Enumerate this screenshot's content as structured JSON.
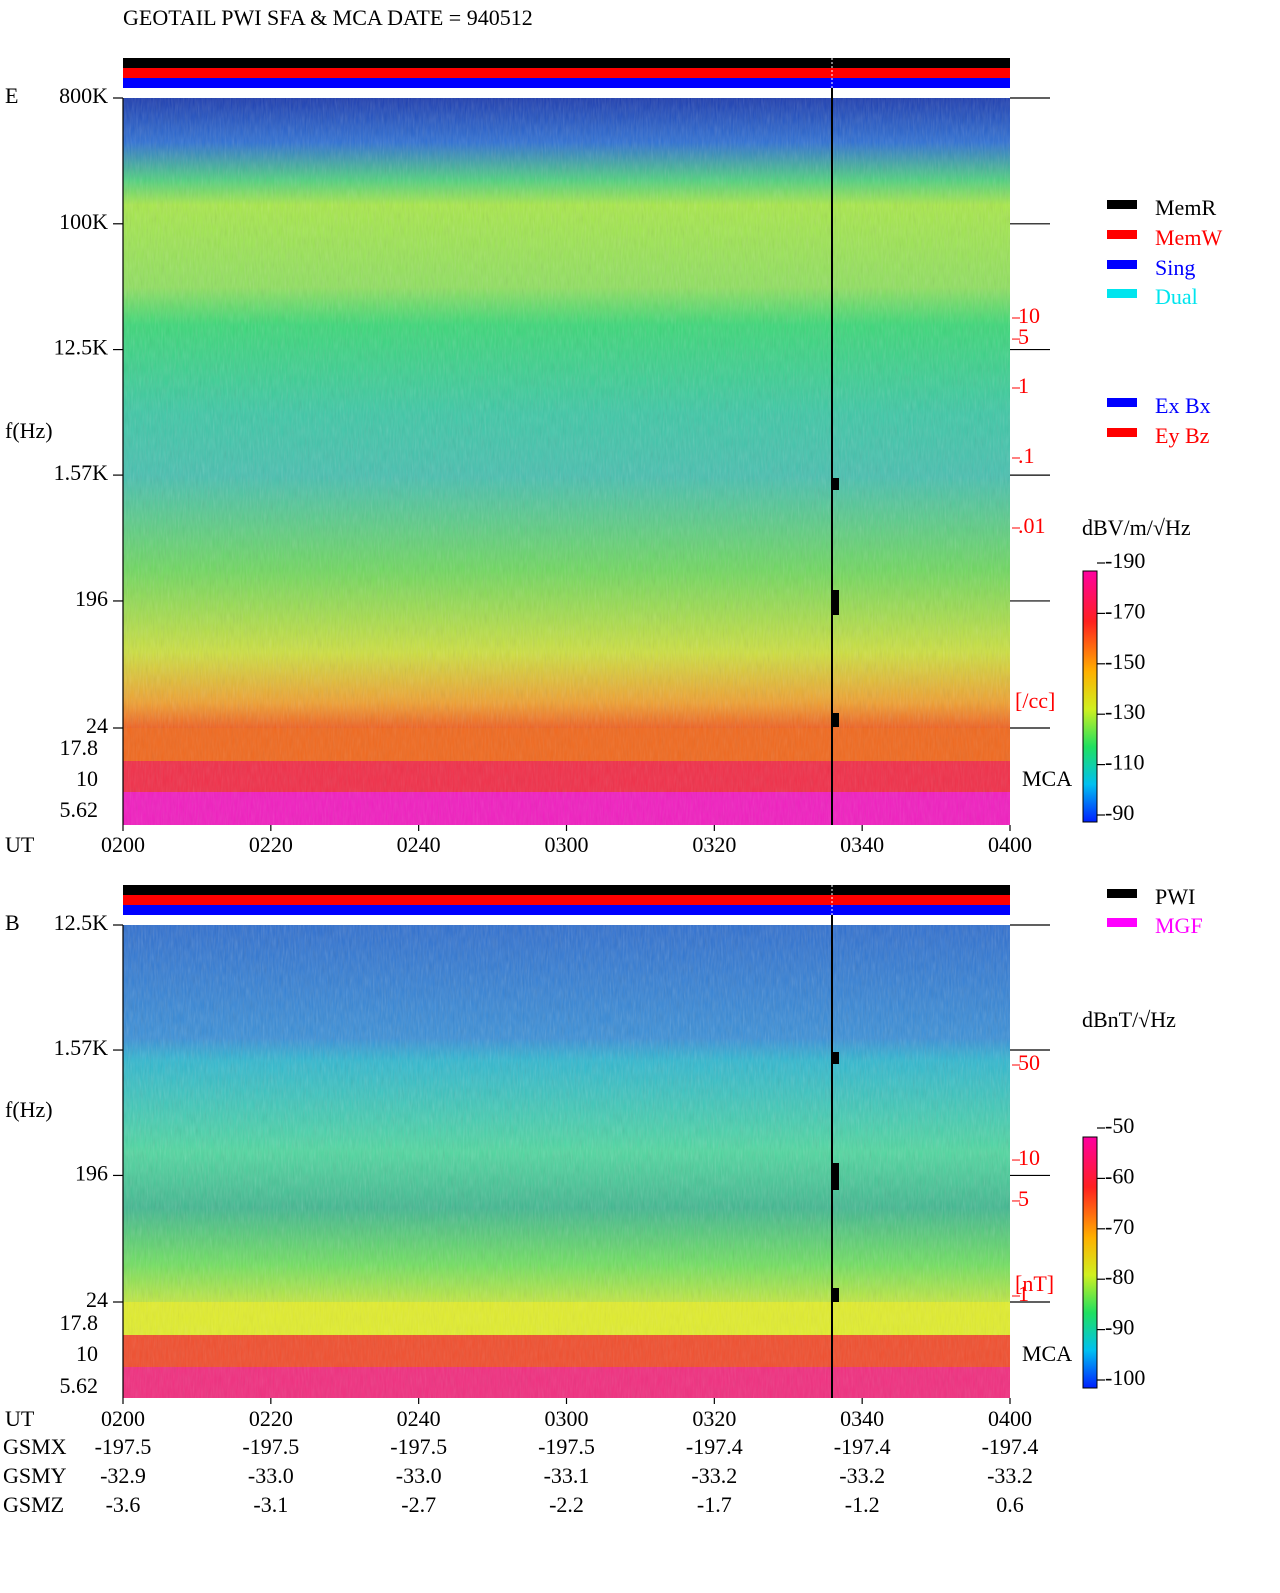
{
  "title": "GEOTAIL  PWI SFA & MCA   DATE = 940512",
  "chart_data": [
    {
      "type": "spectrogram",
      "panel_label": "E",
      "ylabel": "f(Hz)",
      "ylog": true,
      "ylim": [
        24,
        800000
      ],
      "yticks": [
        {
          "value": 800000,
          "label": "800K"
        },
        {
          "value": 100000,
          "label": "100K"
        },
        {
          "value": 12500,
          "label": "12.5K"
        },
        {
          "value": 1570,
          "label": "1.57K"
        },
        196,
        24
      ],
      "mca_label": "MCA",
      "mca_ticks": [
        17.8,
        10,
        5.62
      ],
      "xlabel": "UT",
      "xticks": [
        "0200",
        "0220",
        "0240",
        "0300",
        "0320",
        "0340",
        "0400"
      ],
      "colorbar": {
        "label": "dBV/m/√Hz",
        "lim": [
          -190,
          -90
        ],
        "ticks": [
          -90,
          -110,
          -130,
          -150,
          -170,
          -190
        ]
      },
      "density_scale": {
        "unit": "[/cc]",
        "color": "#ff0000",
        "log": true,
        "lim": [
          0.01,
          10
        ],
        "ticks": [
          10,
          5,
          1,
          {
            "value": 0.1,
            "label": ".1"
          },
          {
            "value": 0.01,
            "label": ".01"
          }
        ]
      },
      "legend": [
        {
          "name": "MemR",
          "color": "#000000"
        },
        {
          "name": "MemW",
          "color": "#ff0000"
        },
        {
          "name": "Sing",
          "color": "#0000ff"
        },
        {
          "name": "Dual",
          "color": "#00e5ee"
        },
        {
          "name": "Ex Bx",
          "color": "#0000ff"
        },
        {
          "name": "Ey Bz",
          "color": "#ff0000"
        }
      ]
    },
    {
      "type": "spectrogram",
      "panel_label": "B",
      "ylabel": "f(Hz)",
      "ylog": true,
      "ylim": [
        24,
        12500
      ],
      "yticks": [
        {
          "value": 12500,
          "label": "12.5K"
        },
        {
          "value": 1570,
          "label": "1.57K"
        },
        196,
        24
      ],
      "mca_label": "MCA",
      "mca_ticks": [
        17.8,
        10,
        5.62
      ],
      "xlabel": "UT",
      "xticks": [
        "0200",
        "0220",
        "0240",
        "0300",
        "0320",
        "0340",
        "0400"
      ],
      "colorbar": {
        "label": "dBnT/√Hz",
        "lim": [
          -100,
          -50
        ],
        "ticks": [
          -50,
          -60,
          -70,
          -80,
          -90,
          -100
        ]
      },
      "density_scale": {
        "unit": "[nT]",
        "color": "#ff0000",
        "log": true,
        "lim": [
          1,
          50
        ],
        "ticks": [
          50,
          10,
          5,
          1
        ]
      },
      "legend": [
        {
          "name": "PWI",
          "color": "#000000"
        },
        {
          "name": "MGF",
          "color": "#ff00ff"
        }
      ]
    }
  ],
  "orbit": {
    "labels": [
      "GSMX",
      "GSMY",
      "GSMZ"
    ],
    "rows": [
      [
        -197.5,
        -197.5,
        -197.5,
        -197.5,
        -197.4,
        -197.4,
        -197.4
      ],
      [
        -32.9,
        {
          "value": -33,
          "label": "-33.0"
        },
        {
          "value": -33,
          "label": "-33.0"
        },
        -33.1,
        -33.2,
        -33.2,
        -33.2
      ],
      [
        -3.6,
        -3.1,
        -2.7,
        -2.2,
        -1.7,
        -1.2,
        0.6
      ]
    ]
  }
}
